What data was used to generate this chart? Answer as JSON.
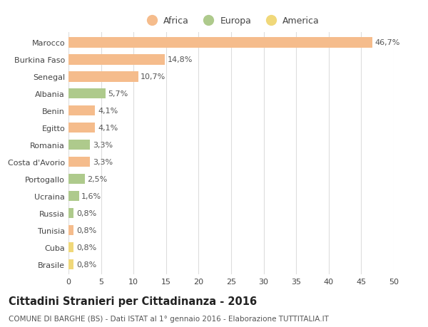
{
  "categories": [
    "Marocco",
    "Burkina Faso",
    "Senegal",
    "Albania",
    "Benin",
    "Egitto",
    "Romania",
    "Costa d'Avorio",
    "Portogallo",
    "Ucraina",
    "Russia",
    "Tunisia",
    "Cuba",
    "Brasile"
  ],
  "values": [
    46.7,
    14.8,
    10.7,
    5.7,
    4.1,
    4.1,
    3.3,
    3.3,
    2.5,
    1.6,
    0.8,
    0.8,
    0.8,
    0.8
  ],
  "labels": [
    "46,7%",
    "14,8%",
    "10,7%",
    "5,7%",
    "4,1%",
    "4,1%",
    "3,3%",
    "3,3%",
    "2,5%",
    "1,6%",
    "0,8%",
    "0,8%",
    "0,8%",
    "0,8%"
  ],
  "continents": [
    "Africa",
    "Africa",
    "Africa",
    "Europa",
    "Africa",
    "Africa",
    "Europa",
    "Africa",
    "Europa",
    "Europa",
    "Europa",
    "Africa",
    "America",
    "America"
  ],
  "colors": {
    "Africa": "#F5BC8C",
    "Europa": "#AECA8C",
    "America": "#F0D87A"
  },
  "legend_order": [
    "Africa",
    "Europa",
    "America"
  ],
  "title": "Cittadini Stranieri per Cittadinanza - 2016",
  "subtitle": "COMUNE DI BARGHE (BS) - Dati ISTAT al 1° gennaio 2016 - Elaborazione TUTTITALIA.IT",
  "xlim": [
    0,
    50
  ],
  "xticks": [
    0,
    5,
    10,
    15,
    20,
    25,
    30,
    35,
    40,
    45,
    50
  ],
  "background_color": "#ffffff",
  "grid_color": "#dddddd",
  "bar_height": 0.6,
  "label_fontsize": 8,
  "tick_fontsize": 8,
  "title_fontsize": 10.5,
  "subtitle_fontsize": 7.5,
  "legend_fontsize": 9
}
